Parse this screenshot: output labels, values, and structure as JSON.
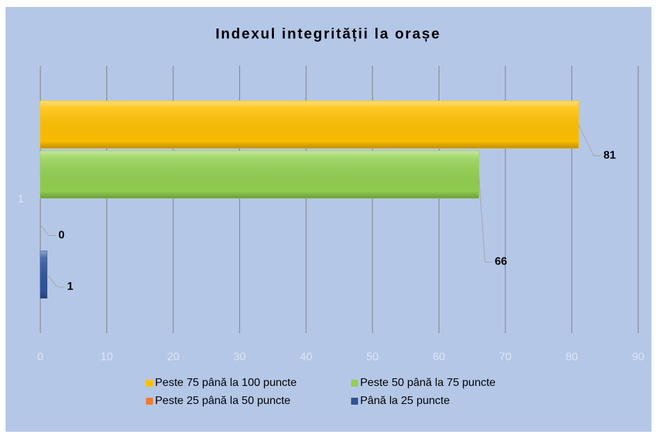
{
  "chart_data": {
    "type": "bar",
    "orientation": "horizontal",
    "title": "Indexul integrității la orașe",
    "categories": [
      "1"
    ],
    "series": [
      {
        "name": "Peste 75 până la 100 puncte",
        "color": "#ffc000",
        "values": [
          81
        ]
      },
      {
        "name": "Peste 50 până la 75 puncte",
        "color": "#92d050",
        "values": [
          66
        ]
      },
      {
        "name": "Peste 25 până la 50 puncte",
        "color": "#ed7d31",
        "values": [
          0
        ]
      },
      {
        "name": "Până la 25 puncte",
        "color": "#2f5597",
        "values": [
          1
        ]
      }
    ],
    "xlim": [
      0,
      90
    ],
    "xticks": [
      0,
      10,
      20,
      30,
      40,
      50,
      60,
      70,
      80,
      90
    ],
    "grid": true,
    "legend": "bottom"
  }
}
